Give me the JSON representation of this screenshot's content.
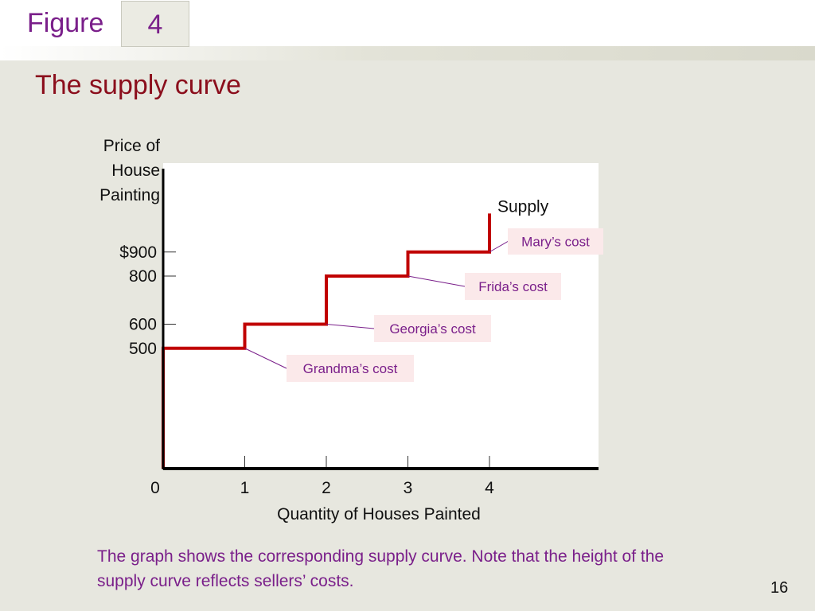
{
  "header": {
    "figure_label": "Figure",
    "figure_number": "4",
    "title": "The supply curve"
  },
  "chart_data": {
    "type": "line",
    "step": true,
    "title": "",
    "xlabel": "Quantity of Houses Painted",
    "ylabel_lines": [
      "Price of",
      "House",
      "Painting"
    ],
    "x_ticks": [
      {
        "value": 0,
        "label": "0"
      },
      {
        "value": 1,
        "label": "1"
      },
      {
        "value": 2,
        "label": "2"
      },
      {
        "value": 3,
        "label": "3"
      },
      {
        "value": 4,
        "label": "4"
      }
    ],
    "y_ticks": [
      {
        "value": 500,
        "label": "500"
      },
      {
        "value": 600,
        "label": "600"
      },
      {
        "value": 800,
        "label": "800"
      },
      {
        "value": 900,
        "label": "$900"
      }
    ],
    "series": [
      {
        "name": "Supply",
        "color": "#c00000",
        "points": [
          {
            "x": 0,
            "y": 0
          },
          {
            "x": 0,
            "y": 500
          },
          {
            "x": 1,
            "y": 500
          },
          {
            "x": 1,
            "y": 600
          },
          {
            "x": 2,
            "y": 600
          },
          {
            "x": 2,
            "y": 800
          },
          {
            "x": 3,
            "y": 800
          },
          {
            "x": 3,
            "y": 900
          },
          {
            "x": 4,
            "y": 900
          },
          {
            "x": 4,
            "y": 1060
          }
        ]
      }
    ],
    "annotations": [
      {
        "text": "Mary’s cost",
        "x": 4,
        "y": 900
      },
      {
        "text": "Frida’s cost",
        "x": 3,
        "y": 800
      },
      {
        "text": "Georgia’s cost",
        "x": 2,
        "y": 600
      },
      {
        "text": "Grandma’s cost",
        "x": 1,
        "y": 500
      }
    ],
    "xlim": [
      0,
      5.4
    ],
    "ylim": [
      0,
      1080
    ],
    "grid": false,
    "legend": "none",
    "colors": {
      "curve": "#c00000",
      "annotation_text": "#7a1f8a",
      "annotation_bg": "#fbe9ea"
    }
  },
  "caption": "The graph shows the corresponding supply curve. Note that the height of the supply curve reflects sellers’ costs.",
  "page_number": "16"
}
